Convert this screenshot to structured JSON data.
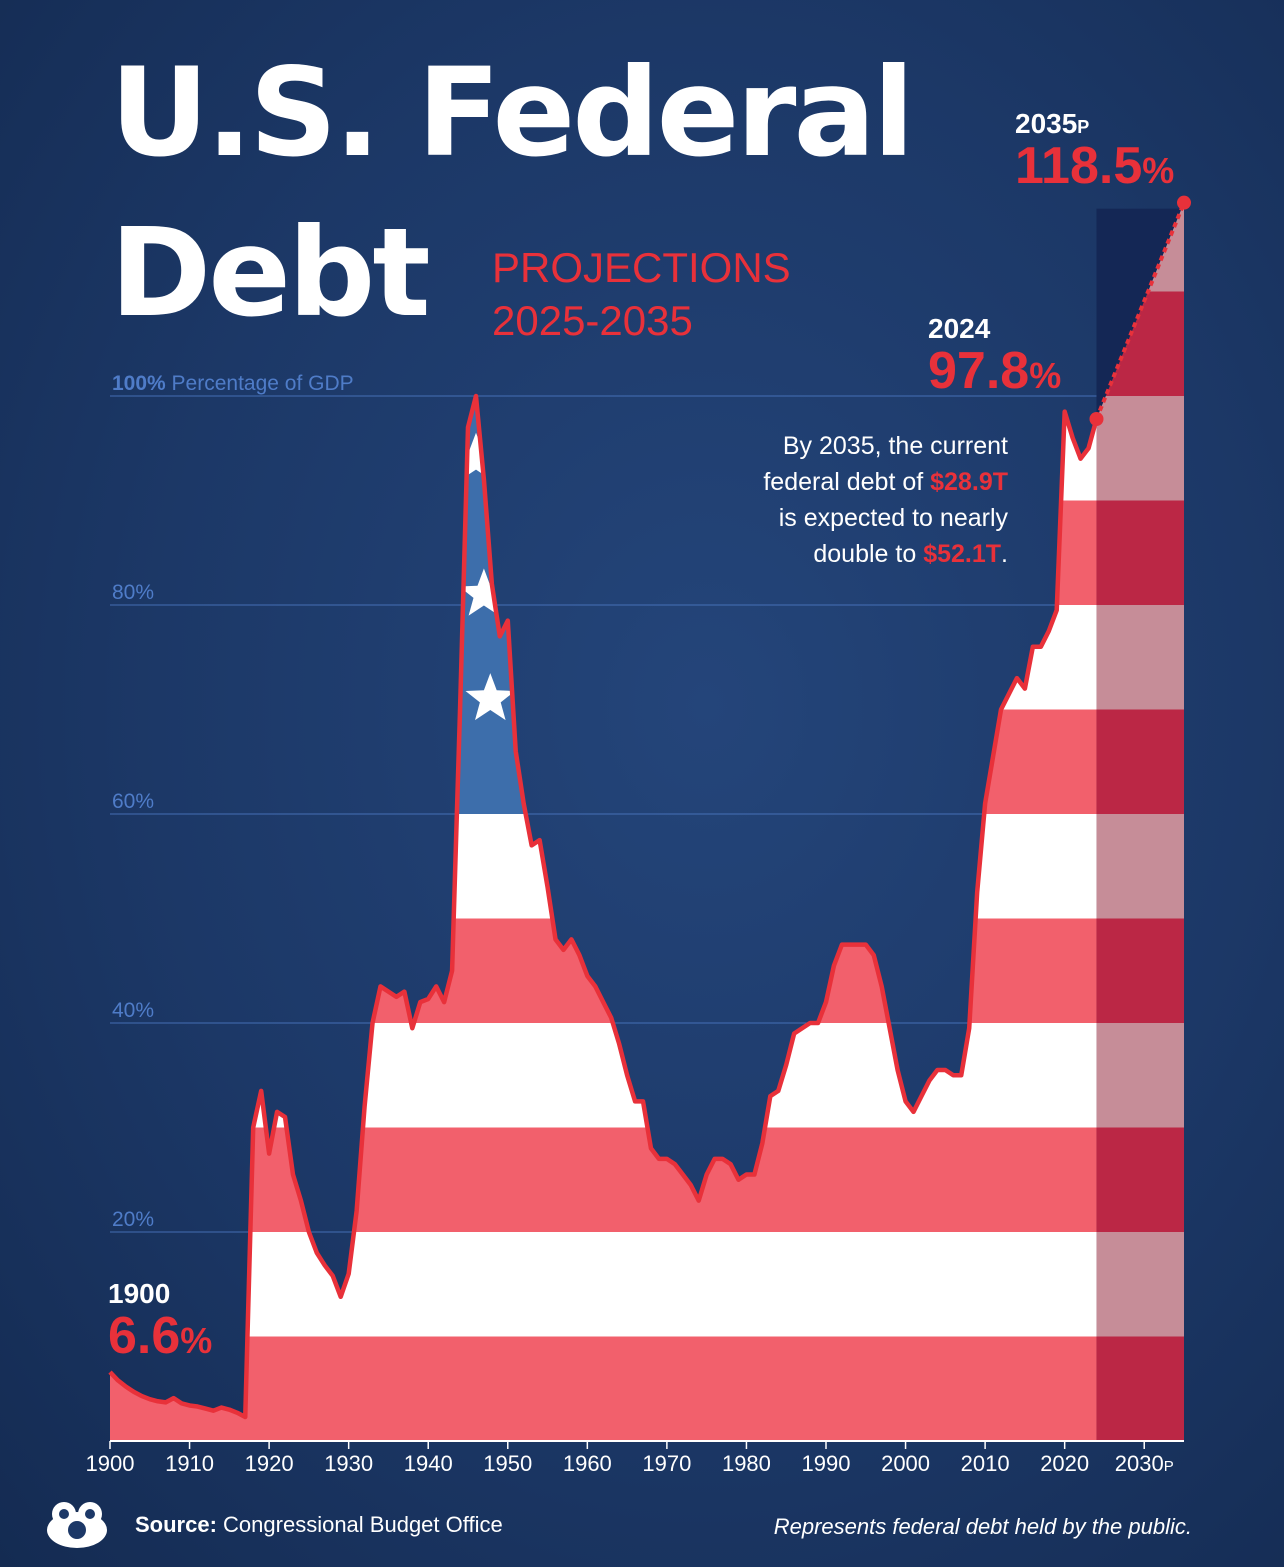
{
  "title": {
    "line1": "U.S. Federal",
    "line2": "Debt",
    "subtitle_line1": "PROJECTIONS",
    "subtitle_line2": "2025-2035"
  },
  "colors": {
    "background": "#1c3867",
    "line": "#e8313a",
    "stripe_red": "#f2606c",
    "stripe_white": "#ffffff",
    "canton_blue": "#3d6eab",
    "projection_dark": "#142755",
    "projection_red": "#bb2745",
    "projection_pink": "#c68d98",
    "grid": "#4f7cc8"
  },
  "chart_data": {
    "type": "area",
    "xlabel": "",
    "ylabel": "Percentage of GDP",
    "xlim": [
      1900,
      2035
    ],
    "ylim": [
      0,
      100
    ],
    "x_ticks": [
      "1900",
      "1910",
      "1920",
      "1930",
      "1940",
      "1950",
      "1960",
      "1970",
      "1980",
      "1990",
      "2000",
      "2010",
      "2020",
      "2030P"
    ],
    "y_ticks": [
      {
        "value": 20,
        "label": "20%"
      },
      {
        "value": 40,
        "label": "40%"
      },
      {
        "value": 60,
        "label": "60%"
      },
      {
        "value": 80,
        "label": "80%"
      },
      {
        "value": 100,
        "label": "100%",
        "suffix": "Percentage of GDP"
      }
    ],
    "historical": {
      "x": [
        1900,
        1901,
        1902,
        1903,
        1904,
        1905,
        1906,
        1907,
        1908,
        1909,
        1910,
        1911,
        1912,
        1913,
        1914,
        1915,
        1916,
        1917,
        1918,
        1919,
        1920,
        1921,
        1922,
        1923,
        1924,
        1925,
        1926,
        1927,
        1928,
        1929,
        1930,
        1931,
        1932,
        1933,
        1934,
        1935,
        1936,
        1937,
        1938,
        1939,
        1940,
        1941,
        1942,
        1943,
        1944,
        1945,
        1946,
        1947,
        1948,
        1949,
        1950,
        1951,
        1952,
        1953,
        1954,
        1955,
        1956,
        1957,
        1958,
        1959,
        1960,
        1961,
        1962,
        1963,
        1964,
        1965,
        1966,
        1967,
        1968,
        1969,
        1970,
        1971,
        1972,
        1973,
        1974,
        1975,
        1976,
        1977,
        1978,
        1979,
        1980,
        1981,
        1982,
        1983,
        1984,
        1985,
        1986,
        1987,
        1988,
        1989,
        1990,
        1991,
        1992,
        1993,
        1994,
        1995,
        1996,
        1997,
        1998,
        1999,
        2000,
        2001,
        2002,
        2003,
        2004,
        2005,
        2006,
        2007,
        2008,
        2009,
        2010,
        2011,
        2012,
        2013,
        2014,
        2015,
        2016,
        2017,
        2018,
        2019,
        2020,
        2021,
        2022,
        2023,
        2024
      ],
      "y": [
        6.6,
        5.8,
        5.2,
        4.7,
        4.3,
        4.0,
        3.8,
        3.7,
        4.1,
        3.6,
        3.4,
        3.3,
        3.1,
        2.9,
        3.2,
        3.0,
        2.7,
        2.3,
        30.0,
        33.5,
        27.5,
        31.5,
        31.0,
        25.5,
        23.0,
        20.0,
        18.0,
        16.8,
        15.8,
        13.8,
        16.0,
        22.0,
        32.0,
        40.0,
        43.5,
        43.0,
        42.5,
        43.0,
        39.5,
        42.0,
        42.3,
        43.5,
        42.0,
        45.0,
        70.0,
        97.0,
        100.0,
        92.0,
        82.0,
        77.0,
        78.5,
        66.0,
        61.0,
        57.0,
        57.5,
        53.0,
        48.0,
        47.0,
        48.0,
        46.5,
        44.5,
        43.5,
        42.0,
        40.5,
        38.0,
        35.0,
        32.5,
        32.5,
        28.0,
        27.0,
        27.0,
        26.5,
        25.5,
        24.5,
        23.0,
        25.5,
        27.0,
        27.0,
        26.5,
        25.0,
        25.5,
        25.5,
        28.5,
        33.0,
        33.5,
        36.0,
        39.0,
        39.5,
        40.0,
        40.0,
        42.0,
        45.5,
        47.5,
        47.5,
        47.5,
        47.5,
        46.5,
        43.5,
        39.5,
        35.5,
        32.5,
        31.5,
        33.0,
        34.5,
        35.5,
        35.5,
        35.0,
        35.0,
        39.5,
        52.5,
        61.0,
        65.5,
        70.0,
        71.5,
        73.0,
        72.0,
        76.0,
        76.0,
        77.5,
        79.5,
        98.5,
        96.0,
        94.0,
        95.0,
        97.8
      ]
    },
    "projection": {
      "x": [
        2024,
        2035
      ],
      "y": [
        97.8,
        118.5
      ],
      "label_suffix": "P"
    },
    "annotations": {
      "start_year": "1900",
      "start_value": "6.6",
      "start_unit": "%",
      "y2024_year": "2024",
      "y2024_value": "97.8",
      "y2024_unit": "%",
      "y2035_year": "2035",
      "y2035_suffix": "P",
      "y2035_value": "118.5",
      "y2035_unit": "%",
      "note_line1": "By 2035, the current",
      "note_line2_pre": "federal debt of ",
      "note_line2_hl": "$28.9T",
      "note_line3": "is expected to nearly",
      "note_line4_pre": "double to ",
      "note_line4_hl": "$52.1T",
      "note_line4_post": "."
    }
  },
  "footer": {
    "source_label": "Source:",
    "source_text": "Congressional Budget Office",
    "note": "Represents federal debt held by the public."
  }
}
